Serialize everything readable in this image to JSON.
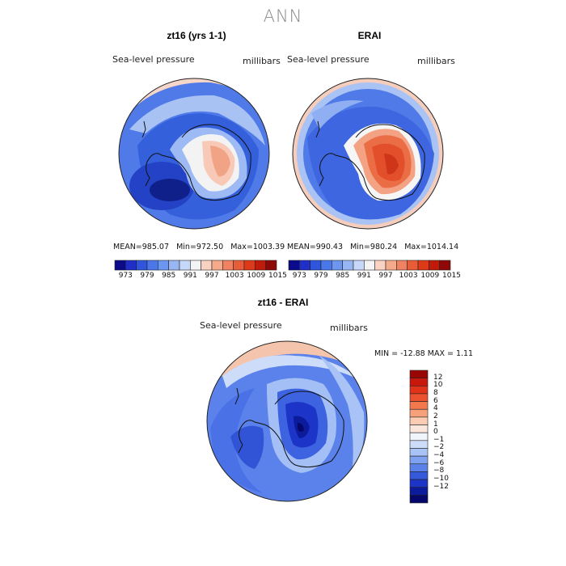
{
  "figure": {
    "title": "ANN",
    "panels": [
      {
        "id": "model",
        "title": "zt16 (yrs 1-1)",
        "variable": "Sea-level pressure",
        "units": "millibars",
        "stats": {
          "mean_label": "MEAN=",
          "mean": "985.07",
          "min_label": "Min=",
          "min": "972.50",
          "max_label": "Max=",
          "max": "1003.39"
        }
      },
      {
        "id": "obs",
        "title": "ERAI",
        "variable": "Sea-level pressure",
        "units": "millibars",
        "stats": {
          "mean_label": "MEAN=",
          "mean": "990.43",
          "min_label": "Min=",
          "min": "980.24",
          "max_label": "Max=",
          "max": "1014.14"
        }
      }
    ],
    "shared_colorbar": {
      "ticks": [
        "973",
        "979",
        "985",
        "991",
        "997",
        "1003",
        "1009",
        "1015"
      ],
      "colors": [
        "#0a0a8a",
        "#1f2fc8",
        "#2f55dd",
        "#4a78ea",
        "#6c96f0",
        "#98b6f4",
        "#c6d8fa",
        "#f4f4f4",
        "#f9d2c2",
        "#f5aa8c",
        "#ef8260",
        "#e85c38",
        "#dd3a1a",
        "#c01a0a",
        "#8e0808"
      ]
    },
    "difference": {
      "title": "zt16 - ERAI",
      "variable": "Sea-level pressure",
      "units": "millibars",
      "stats_text": "MIN = -12.88 MAX =   1.11",
      "colorbar": {
        "ticks": [
          "12",
          "10",
          "8",
          "6",
          "4",
          "2",
          "1",
          "0",
          "−1",
          "−2",
          "−4",
          "−6",
          "−8",
          "−10",
          "−12"
        ],
        "colors": [
          "#9a0606",
          "#c8170c",
          "#e0331a",
          "#ec5230",
          "#f3784e",
          "#f7a07c",
          "#fbcbb3",
          "#fbe6dc",
          "#f0f4fb",
          "#cddcf8",
          "#a9c3f6",
          "#7fa2f0",
          "#5a82ea",
          "#3659dc",
          "#1c35c8",
          "#0c1a9c",
          "#05086a"
        ]
      }
    }
  }
}
